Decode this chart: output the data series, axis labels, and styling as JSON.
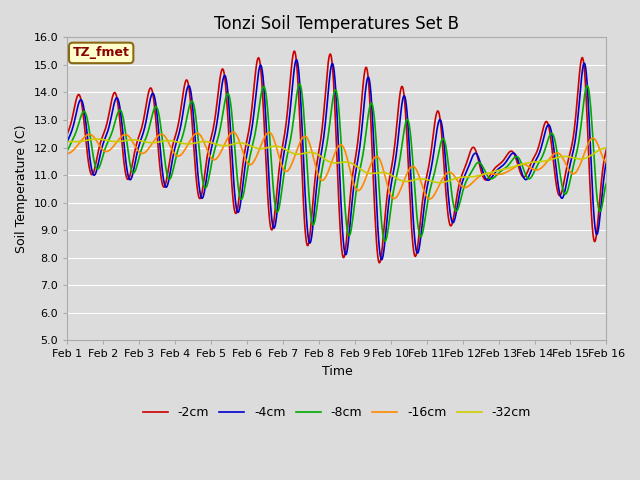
{
  "title": "Tonzi Soil Temperatures Set B",
  "xlabel": "Time",
  "ylabel": "Soil Temperature (C)",
  "ylim": [
    5.0,
    16.0
  ],
  "yticks": [
    5.0,
    6.0,
    7.0,
    8.0,
    9.0,
    10.0,
    11.0,
    12.0,
    13.0,
    14.0,
    15.0,
    16.0
  ],
  "xtick_labels": [
    "Feb 1",
    "Feb 2",
    "Feb 3",
    "Feb 4",
    "Feb 5",
    "Feb 6",
    "Feb 7",
    "Feb 8",
    "Feb 9",
    "Feb 10",
    "Feb 11",
    "Feb 12",
    "Feb 13",
    "Feb 14",
    "Feb 15",
    "Feb 16"
  ],
  "series_colors": [
    "#cc0000",
    "#0000cc",
    "#00aa00",
    "#ff8800",
    "#cccc00"
  ],
  "series_labels": [
    "-2cm",
    "-4cm",
    "-8cm",
    "-16cm",
    "-32cm"
  ],
  "background_color": "#dcdcdc",
  "plot_bg": "#dcdcdc",
  "annotation_text": "TZ_fmet",
  "annotation_color": "#8b0000",
  "annotation_bg": "#ffffcc",
  "annotation_border": "#8b6914",
  "legend_fontsize": 9,
  "title_fontsize": 12,
  "label_fontsize": 9,
  "tick_fontsize": 8,
  "linewidth": 1.2
}
